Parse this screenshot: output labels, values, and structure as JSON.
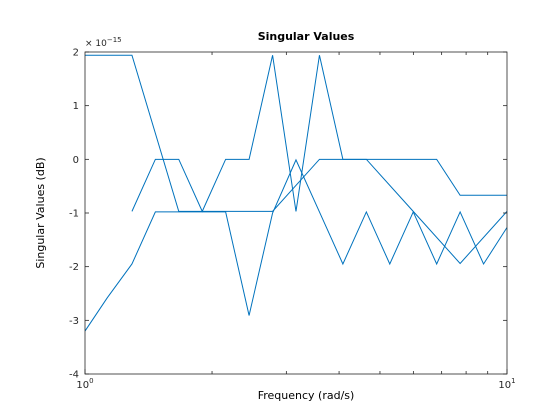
{
  "chart_data": {
    "type": "line",
    "title": "Singular Values",
    "xlabel": "Frequency (rad/s)",
    "ylabel": "Singular Values (dB)",
    "x_scale": "log",
    "xlim": [
      1,
      10
    ],
    "ylim": [
      -4,
      2
    ],
    "y_multiplier": "× 10",
    "y_multiplier_exponent": "−15",
    "x_ticks": [
      {
        "value": 1,
        "base": "10",
        "exp": "0"
      },
      {
        "value": 10,
        "base": "10",
        "exp": "1"
      }
    ],
    "y_ticks": [
      {
        "value": -4,
        "label": "-4"
      },
      {
        "value": -3,
        "label": "-3"
      },
      {
        "value": -2,
        "label": "-2"
      },
      {
        "value": -1,
        "label": "-1"
      },
      {
        "value": 0,
        "label": "0"
      },
      {
        "value": 1,
        "label": "1"
      },
      {
        "value": 2,
        "label": "2"
      }
    ],
    "grid": false,
    "line_color": "#0072BD",
    "series": [
      {
        "x": [
          1,
          1.292,
          1.668,
          2.154,
          2.783,
          3.594,
          4.642,
          5.995,
          7.743,
          10
        ],
        "y": [
          1.94,
          1.94,
          -0.97,
          -0.97,
          -0.97,
          0,
          0,
          -0.97,
          -1.94,
          -0.97
        ]
      },
      {
        "x": [
          1,
          1.129,
          1.292,
          1.468,
          1.668,
          1.896,
          2.154,
          2.448,
          2.783,
          3.162,
          3.594,
          4.084,
          4.642,
          5.275,
          5.995,
          6.813,
          7.743,
          8.799,
          10
        ],
        "y": [
          -3.2,
          -2.58,
          -1.95,
          -0.98,
          -0.98,
          -0.98,
          -0.98,
          -2.91,
          -1.0,
          -0.01,
          -0.98,
          -1.95,
          -0.98,
          -1.95,
          -0.98,
          -1.95,
          -0.98,
          -1.95,
          -1.27
        ]
      },
      {
        "x": [
          1.292,
          1.468,
          1.668,
          1.896,
          2.154,
          2.448,
          2.783,
          3.162,
          3.594,
          4.084,
          4.642,
          5.275,
          5.995,
          6.813,
          7.743,
          8.799,
          10
        ],
        "y": [
          -0.97,
          0,
          0,
          -0.97,
          0,
          0,
          1.94,
          -0.97,
          1.94,
          0,
          0,
          0,
          0,
          0,
          -0.67,
          -0.67,
          -0.67
        ]
      }
    ]
  }
}
